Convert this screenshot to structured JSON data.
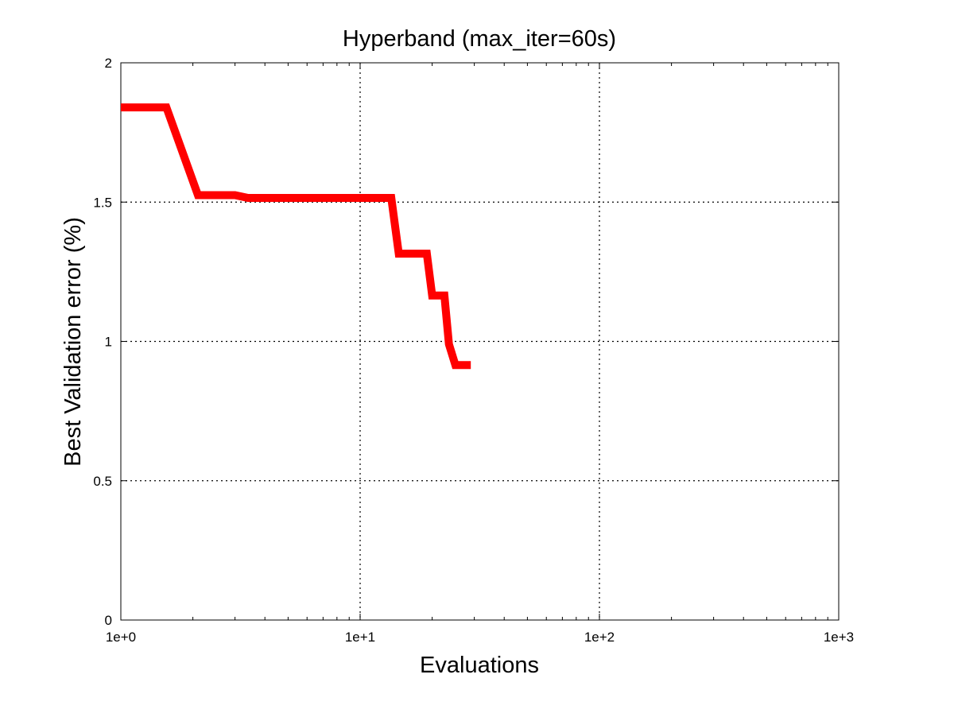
{
  "chart_data": {
    "type": "line",
    "title": "Hyperband (max_iter=60s)",
    "xlabel": "Evaluations",
    "ylabel": "Best Validation error (%)",
    "xscale": "log",
    "xlim": [
      1,
      1000
    ],
    "ylim": [
      0,
      2
    ],
    "grid": true,
    "xticks": [
      1,
      10,
      100,
      1000
    ],
    "xtick_labels": [
      "1e+0",
      "1e+1",
      "1e+2",
      "1e+3"
    ],
    "yticks": [
      0,
      0.5,
      1,
      1.5,
      2
    ],
    "ytick_labels": [
      "0",
      "0.5",
      "1",
      "1.5",
      "2"
    ],
    "series": [
      {
        "name": "Hyperband",
        "color": "#ff0000",
        "x": [
          1,
          1.55,
          2.1,
          3.0,
          3.4,
          13.5,
          14.5,
          19,
          20,
          22.5,
          23.5,
          25,
          29
        ],
        "y": [
          1.84,
          1.84,
          1.525,
          1.525,
          1.515,
          1.515,
          1.315,
          1.315,
          1.165,
          1.165,
          0.99,
          0.915,
          0.915
        ]
      }
    ]
  }
}
